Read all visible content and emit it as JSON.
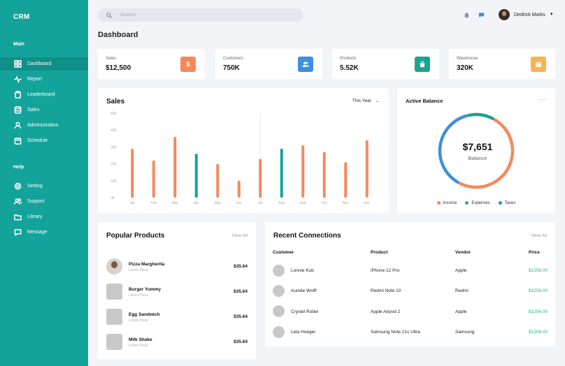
{
  "brand": "CRM",
  "sidebar": {
    "main_label": "Main",
    "help_label": "Help",
    "main_items": [
      {
        "label": "Dashboard",
        "icon": "grid-icon"
      },
      {
        "label": "Report",
        "icon": "pulse-icon"
      },
      {
        "label": "Leaderboard",
        "icon": "clipboard-icon"
      },
      {
        "label": "Sales",
        "icon": "database-icon"
      },
      {
        "label": "Administration",
        "icon": "user-icon"
      },
      {
        "label": "Schedule",
        "icon": "calendar-icon"
      }
    ],
    "help_items": [
      {
        "label": "Setting",
        "icon": "gear-icon"
      },
      {
        "label": "Support",
        "icon": "users-icon"
      },
      {
        "label": "Library",
        "icon": "folder-icon"
      },
      {
        "label": "Message",
        "icon": "chat-icon"
      }
    ]
  },
  "search": {
    "placeholder": "Search"
  },
  "user": {
    "name": "Dedrick Marks"
  },
  "page_title": "Dashboard",
  "stats": [
    {
      "label": "Sales",
      "value": "$12,500",
      "color": "#f5895c",
      "icon": "dollar-icon"
    },
    {
      "label": "Customers",
      "value": "750K",
      "color": "#3f8fdc",
      "icon": "users-icon"
    },
    {
      "label": "Products",
      "value": "5.52K",
      "color": "#1aa38f",
      "icon": "bag-icon"
    },
    {
      "label": "Warehouse",
      "value": "320K",
      "color": "#f6b354",
      "icon": "box-icon"
    }
  ],
  "sales_card": {
    "title": "Sales",
    "period": "This Year"
  },
  "chart_data": {
    "type": "bar",
    "title": "Sales",
    "categories": [
      "Jan",
      "Feb",
      "Mar",
      "Apr",
      "May",
      "Jun",
      "Jul",
      "Aug",
      "Sep",
      "Oct",
      "Nov",
      "Dec"
    ],
    "values": [
      29,
      22,
      36,
      26,
      20,
      10,
      23,
      29,
      31,
      27,
      21,
      34
    ],
    "colors": [
      "#f5895c",
      "#f5895c",
      "#f5895c",
      "#14a39a",
      "#f5895c",
      "#f5895c",
      "#f5895c",
      "#14a39a",
      "#f5895c",
      "#f5895c",
      "#f5895c",
      "#f5895c"
    ],
    "y_ticks": [
      "0K",
      "10K",
      "20K",
      "30K",
      "40K",
      "50K"
    ],
    "ylim": [
      0,
      50
    ],
    "grid": false
  },
  "balance": {
    "title": "Active Balance",
    "amount": "$7,651",
    "label": "Balance",
    "segments": [
      {
        "name": "Income",
        "value": 50,
        "color": "#f5895c"
      },
      {
        "name": "Expenses",
        "value": 38,
        "color": "#3f8fdc"
      },
      {
        "name": "Taxes",
        "value": 12,
        "color": "#1aa38f"
      }
    ],
    "legend": [
      "Income",
      "Expenses",
      "Taxes"
    ]
  },
  "popular": {
    "title": "Popular Products",
    "view_all": "View All",
    "items": [
      {
        "name": "Pizza Margherita",
        "sub": "Lorem Pizza",
        "price": "$35.64"
      },
      {
        "name": "Burger Yummy",
        "sub": "Lorem Pizza",
        "price": "$35.64"
      },
      {
        "name": "Egg Sandwich",
        "sub": "Lorem Pizza",
        "price": "$35.64"
      },
      {
        "name": "Milk Shake",
        "sub": "Lorem Pizza",
        "price": "$35.64"
      }
    ]
  },
  "connections": {
    "title": "Recent Connections",
    "view_all": "View All",
    "headers": [
      "Customer",
      "Product",
      "Vendor",
      "Price"
    ],
    "rows": [
      {
        "customer": "Lonnie Kub",
        "product": "iPhone 12 Pro",
        "vendor": "Apple",
        "price": "$1256.00"
      },
      {
        "customer": "Aurelie Wolff",
        "product": "Redmi Note 10",
        "vendor": "Redmi",
        "price": "$1256.00"
      },
      {
        "customer": "Crystel Robel",
        "product": "Apple Airpod 2",
        "vendor": "Apple",
        "price": "$1256.00"
      },
      {
        "customer": "Lela Hoeger",
        "product": "Samsung Note 21s Ultra",
        "vendor": "Samsung",
        "price": "$1256.00"
      }
    ]
  }
}
